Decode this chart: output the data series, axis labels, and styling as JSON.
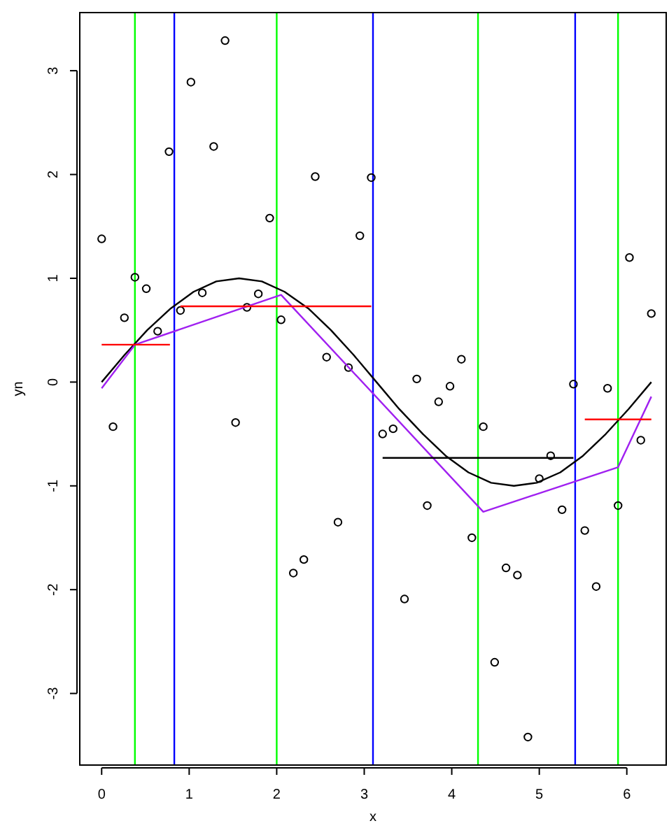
{
  "chart_data": {
    "type": "scatter",
    "xlabel": "x",
    "ylabel": "yn",
    "xlim": [
      -0.25,
      6.45
    ],
    "ylim": [
      -3.69,
      3.56
    ],
    "xticks": [
      0,
      1,
      2,
      3,
      4,
      5,
      6
    ],
    "yticks": [
      -3,
      -2,
      -1,
      0,
      1,
      2,
      3
    ],
    "grid": false,
    "series": [
      {
        "marker": "circle",
        "color": "#000000",
        "x": [
          0,
          0.13,
          0.26,
          0.38,
          0.51,
          0.64,
          0.77,
          0.9,
          1.02,
          1.15,
          1.28,
          1.41,
          1.53,
          1.66,
          1.79,
          1.92,
          2.05,
          2.19,
          2.31,
          2.44,
          2.57,
          2.7,
          2.82,
          2.95,
          3.08,
          3.21,
          3.33,
          3.46,
          3.6,
          3.72,
          3.85,
          3.98,
          4.11,
          4.23,
          4.36,
          4.49,
          4.62,
          4.75,
          4.87,
          5.0,
          5.13,
          5.26,
          5.39,
          5.52,
          5.65,
          5.78,
          5.9,
          6.03,
          6.16,
          6.28
        ],
        "values": [
          1.38,
          -0.43,
          0.62,
          1.01,
          0.9,
          0.49,
          2.22,
          0.69,
          2.89,
          0.86,
          2.27,
          3.29,
          -0.39,
          0.72,
          0.85,
          1.58,
          0.6,
          -1.84,
          -1.71,
          1.98,
          0.24,
          -1.35,
          0.14,
          1.41,
          1.97,
          -0.5,
          -0.45,
          -2.09,
          0.03,
          -1.19,
          -0.19,
          -0.04,
          0.22,
          -1.5,
          -0.43,
          -2.7,
          -1.79,
          -1.86,
          -3.42,
          -0.93,
          -0.71,
          -1.23,
          -0.02,
          -1.43,
          -1.97,
          -0.06,
          -1.19,
          1.2,
          -0.56,
          0.66
        ]
      },
      {
        "type": "line",
        "color": "#000000",
        "x": [
          0,
          0.26,
          0.52,
          0.79,
          1.05,
          1.31,
          1.57,
          1.83,
          2.09,
          2.36,
          2.62,
          2.88,
          3.14,
          3.4,
          3.67,
          3.93,
          4.19,
          4.45,
          4.71,
          4.97,
          5.24,
          5.5,
          5.76,
          6.02,
          6.28
        ],
        "values": [
          0,
          0.26,
          0.5,
          0.71,
          0.87,
          0.97,
          1,
          0.97,
          0.87,
          0.71,
          0.5,
          0.26,
          0,
          -0.26,
          -0.5,
          -0.71,
          -0.87,
          -0.97,
          -1,
          -0.97,
          -0.87,
          -0.71,
          -0.5,
          -0.26,
          0
        ]
      },
      {
        "type": "line",
        "color": "#a020f0",
        "x": [
          0,
          0.38,
          2.05,
          4.36,
          5.9,
          6.28
        ],
        "values": [
          -0.06,
          0.36,
          0.84,
          -1.25,
          -0.82,
          -0.14
        ]
      },
      {
        "type": "line",
        "color": "#ff0000",
        "x": [
          0,
          0.78
        ],
        "values": [
          0.36,
          0.36
        ]
      },
      {
        "type": "line",
        "color": "#ff0000",
        "x": [
          0.9,
          3.08
        ],
        "values": [
          0.73,
          0.73
        ]
      },
      {
        "type": "line",
        "color": "#000000",
        "x": [
          3.21,
          5.39
        ],
        "values": [
          -0.73,
          -0.73
        ]
      },
      {
        "type": "line",
        "color": "#ff0000",
        "x": [
          5.52,
          6.28
        ],
        "values": [
          -0.36,
          -0.36
        ]
      }
    ],
    "ref_lines": [
      {
        "axis": "x",
        "value": 0.38,
        "color": "#00ff00"
      },
      {
        "axis": "x",
        "value": 2.0,
        "color": "#00ff00"
      },
      {
        "axis": "x",
        "value": 4.3,
        "color": "#00ff00"
      },
      {
        "axis": "x",
        "value": 5.9,
        "color": "#00ff00"
      },
      {
        "axis": "x",
        "value": 0.83,
        "color": "#0000ff"
      },
      {
        "axis": "x",
        "value": 3.1,
        "color": "#0000ff"
      },
      {
        "axis": "x",
        "value": 5.41,
        "color": "#0000ff"
      }
    ]
  }
}
